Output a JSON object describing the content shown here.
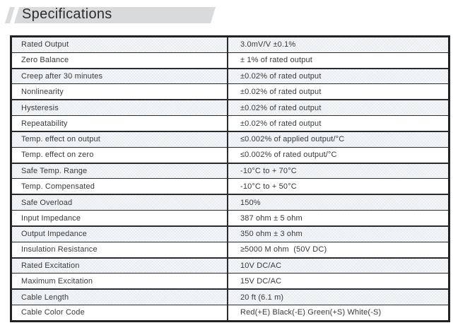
{
  "header": {
    "title": "Specifications"
  },
  "table": {
    "rows": [
      {
        "label": "Rated Output",
        "value": "3.0mV/V ±0.1%"
      },
      {
        "label": "Zero Balance",
        "value": "± 1% of rated output"
      },
      {
        "label": "Creep after 30 minutes",
        "value": "±0.02% of rated output"
      },
      {
        "label": "Nonlinearity",
        "value": "±0.02% of rated output"
      },
      {
        "label": "Hysteresis",
        "value": "±0.02% of rated output"
      },
      {
        "label": "Repeatability",
        "value": "±0.02% of rated output"
      },
      {
        "label": "Temp. effect on output",
        "value": "≤0.002% of applied output/°C"
      },
      {
        "label": "Temp. effect on zero",
        "value": "≤0.002% of rated output/°C"
      },
      {
        "label": "Safe Temp. Range",
        "value": "-10°C to + 70°C"
      },
      {
        "label": "Temp. Compensated",
        "value": "-10°C to + 50°C"
      },
      {
        "label": "Safe Overload",
        "value": "150%"
      },
      {
        "label": "Input Impedance",
        "value": "387 ohm ± 5 ohm"
      },
      {
        "label": "Output Impedance",
        "value": "350 ohm ± 3 ohm"
      },
      {
        "label": "Insulation Resistance",
        "value": "≥5000 M ohm  (50V DC)"
      },
      {
        "label": "Rated Excitation",
        "value": "10V DC/AC"
      },
      {
        "label": "Maximum Excitation",
        "value": "15V DC/AC"
      },
      {
        "label": "Cable Length",
        "value": "20 ft (6.1 m)"
      },
      {
        "label": "Cable Color Code",
        "value": "Red(+E) Black(-E) Green(+S) White(-S)"
      }
    ]
  },
  "colors": {
    "banner_bg": "#d8dadc",
    "row_shade": "#e9edf0",
    "border": "#212225",
    "text": "#38393b"
  }
}
